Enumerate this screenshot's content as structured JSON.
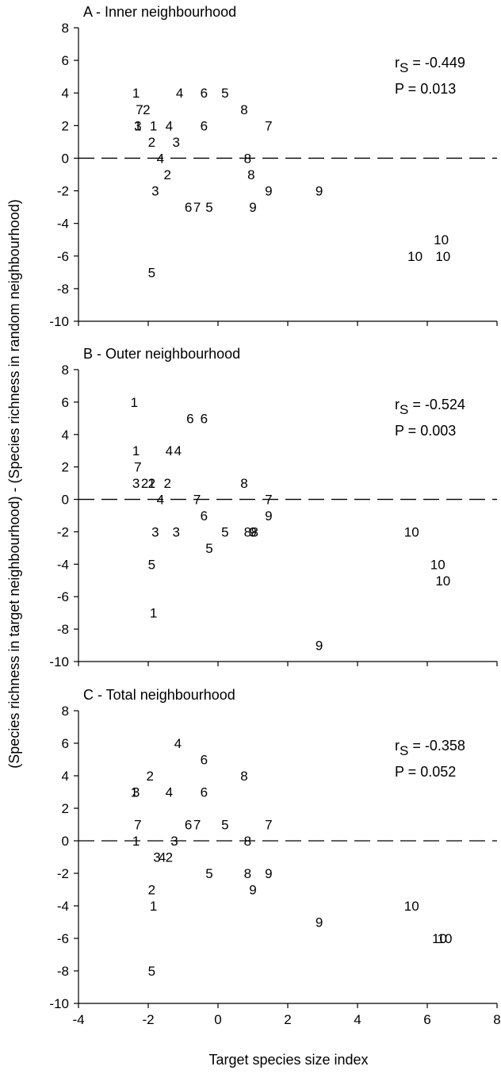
{
  "xlabel": "Target species size index",
  "ylabel": "(Species richness in target neighbourhood) - (Species richness in random neighbourhood)",
  "chart_data": [
    {
      "type": "scatter",
      "title": "A - Inner neighbourhood",
      "xlim": [
        -4,
        8
      ],
      "ylim": [
        -10,
        8
      ],
      "xticks": [
        "-4",
        "-2",
        "0",
        "2",
        "4",
        "6",
        "8"
      ],
      "yticks": [
        "-10",
        "-8",
        "-6",
        "-4",
        "-2",
        "0",
        "2",
        "4",
        "6",
        "8"
      ],
      "reference_line": {
        "y": 0,
        "style": "dashed"
      },
      "stat_r": "-0.449",
      "stat_p": "P = 0.013",
      "points": [
        {
          "x": -2.35,
          "y": 4,
          "label": "1"
        },
        {
          "x": -1.1,
          "y": 4,
          "label": "4"
        },
        {
          "x": -0.4,
          "y": 4,
          "label": "6"
        },
        {
          "x": 0.2,
          "y": 4,
          "label": "5"
        },
        {
          "x": -2.25,
          "y": 3,
          "label": "7"
        },
        {
          "x": -2.05,
          "y": 3,
          "label": "2"
        },
        {
          "x": 0.75,
          "y": 3,
          "label": "8"
        },
        {
          "x": -2.3,
          "y": 2,
          "label": "1"
        },
        {
          "x": -2.3,
          "y": 2,
          "label": "3"
        },
        {
          "x": -1.85,
          "y": 2,
          "label": "1"
        },
        {
          "x": -1.4,
          "y": 2,
          "label": "4"
        },
        {
          "x": -0.4,
          "y": 2,
          "label": "6"
        },
        {
          "x": 1.45,
          "y": 2,
          "label": "7"
        },
        {
          "x": -1.9,
          "y": 1,
          "label": "2"
        },
        {
          "x": -1.2,
          "y": 1,
          "label": "3"
        },
        {
          "x": -1.65,
          "y": 0,
          "label": "4"
        },
        {
          "x": 0.85,
          "y": 0,
          "label": "8"
        },
        {
          "x": -1.45,
          "y": -1,
          "label": "2"
        },
        {
          "x": 0.95,
          "y": -1,
          "label": "8"
        },
        {
          "x": -1.8,
          "y": -2,
          "label": "3"
        },
        {
          "x": 1.45,
          "y": -2,
          "label": "9"
        },
        {
          "x": 2.9,
          "y": -2,
          "label": "9"
        },
        {
          "x": -0.85,
          "y": -3,
          "label": "6"
        },
        {
          "x": -0.6,
          "y": -3,
          "label": "7"
        },
        {
          "x": -0.25,
          "y": -3,
          "label": "5"
        },
        {
          "x": 1.0,
          "y": -3,
          "label": "9"
        },
        {
          "x": 6.4,
          "y": -5,
          "label": "10"
        },
        {
          "x": 5.65,
          "y": -6,
          "label": "10"
        },
        {
          "x": 6.45,
          "y": -6,
          "label": "10"
        },
        {
          "x": -1.9,
          "y": -7,
          "label": "5"
        }
      ]
    },
    {
      "type": "scatter",
      "title": "B - Outer neighbourhood",
      "xlim": [
        -4,
        8
      ],
      "ylim": [
        -10,
        8
      ],
      "xticks": [
        "-4",
        "-2",
        "0",
        "2",
        "4",
        "6",
        "8"
      ],
      "yticks": [
        "-10",
        "-8",
        "-6",
        "-4",
        "-2",
        "0",
        "2",
        "4",
        "6",
        "8"
      ],
      "reference_line": {
        "y": 0,
        "style": "dashed"
      },
      "stat_r": "-0.524",
      "stat_p": "P = 0.003",
      "points": [
        {
          "x": -2.4,
          "y": 6,
          "label": "1"
        },
        {
          "x": -0.8,
          "y": 5,
          "label": "6"
        },
        {
          "x": -0.4,
          "y": 5,
          "label": "6"
        },
        {
          "x": -2.35,
          "y": 3,
          "label": "1"
        },
        {
          "x": -1.4,
          "y": 3,
          "label": "4"
        },
        {
          "x": -1.15,
          "y": 3,
          "label": "4"
        },
        {
          "x": -2.3,
          "y": 2,
          "label": "7"
        },
        {
          "x": -2.35,
          "y": 1,
          "label": "3"
        },
        {
          "x": -2.1,
          "y": 1,
          "label": "2"
        },
        {
          "x": -1.9,
          "y": 1,
          "label": "1"
        },
        {
          "x": -1.9,
          "y": 1,
          "label": "2"
        },
        {
          "x": -1.45,
          "y": 1,
          "label": "2"
        },
        {
          "x": 0.75,
          "y": 1,
          "label": "8"
        },
        {
          "x": -1.65,
          "y": 0,
          "label": "4"
        },
        {
          "x": -0.6,
          "y": 0,
          "label": "7"
        },
        {
          "x": 1.45,
          "y": 0,
          "label": "7"
        },
        {
          "x": -0.4,
          "y": -1,
          "label": "6"
        },
        {
          "x": 1.45,
          "y": -1,
          "label": "9"
        },
        {
          "x": -1.8,
          "y": -2,
          "label": "3"
        },
        {
          "x": -1.2,
          "y": -2,
          "label": "3"
        },
        {
          "x": 0.2,
          "y": -2,
          "label": "5"
        },
        {
          "x": 0.85,
          "y": -2,
          "label": "8"
        },
        {
          "x": 1.0,
          "y": -2,
          "label": "9"
        },
        {
          "x": 1.05,
          "y": -2,
          "label": "8"
        },
        {
          "x": 5.55,
          "y": -2,
          "label": "10"
        },
        {
          "x": -0.25,
          "y": -3,
          "label": "5"
        },
        {
          "x": -1.9,
          "y": -4,
          "label": "5"
        },
        {
          "x": 6.3,
          "y": -4,
          "label": "10"
        },
        {
          "x": 6.45,
          "y": -5,
          "label": "10"
        },
        {
          "x": -1.85,
          "y": -7,
          "label": "1"
        },
        {
          "x": 2.9,
          "y": -9,
          "label": "9"
        }
      ]
    },
    {
      "type": "scatter",
      "title": "C - Total neighbourhood",
      "xlim": [
        -4,
        8
      ],
      "ylim": [
        -10,
        8
      ],
      "xticks": [
        "-4",
        "-2",
        "0",
        "2",
        "4",
        "6",
        "8"
      ],
      "yticks": [
        "-10",
        "-8",
        "-6",
        "-4",
        "-2",
        "0",
        "2",
        "4",
        "6",
        "8"
      ],
      "reference_line": {
        "y": 0,
        "style": "dashed"
      },
      "stat_r": "-0.358",
      "stat_p": "P = 0.052",
      "points": [
        {
          "x": -1.15,
          "y": 6,
          "label": "4"
        },
        {
          "x": -0.4,
          "y": 5,
          "label": "6"
        },
        {
          "x": -1.95,
          "y": 4,
          "label": "2"
        },
        {
          "x": 0.75,
          "y": 4,
          "label": "8"
        },
        {
          "x": -2.4,
          "y": 3,
          "label": "1"
        },
        {
          "x": -2.35,
          "y": 3,
          "label": "3"
        },
        {
          "x": -1.4,
          "y": 3,
          "label": "4"
        },
        {
          "x": -0.4,
          "y": 3,
          "label": "6"
        },
        {
          "x": -2.3,
          "y": 1,
          "label": "7"
        },
        {
          "x": -0.85,
          "y": 1,
          "label": "6"
        },
        {
          "x": -0.6,
          "y": 1,
          "label": "7"
        },
        {
          "x": 0.2,
          "y": 1,
          "label": "5"
        },
        {
          "x": 1.45,
          "y": 1,
          "label": "7"
        },
        {
          "x": -2.35,
          "y": 0,
          "label": "1"
        },
        {
          "x": -1.25,
          "y": 0,
          "label": "3"
        },
        {
          "x": 0.85,
          "y": 0,
          "label": "8"
        },
        {
          "x": -1.75,
          "y": -1,
          "label": "3"
        },
        {
          "x": -1.6,
          "y": -1,
          "label": "4"
        },
        {
          "x": -1.4,
          "y": -1,
          "label": "2"
        },
        {
          "x": -0.25,
          "y": -2,
          "label": "5"
        },
        {
          "x": 0.85,
          "y": -2,
          "label": "8"
        },
        {
          "x": 1.45,
          "y": -2,
          "label": "9"
        },
        {
          "x": -1.9,
          "y": -3,
          "label": "2"
        },
        {
          "x": 1.0,
          "y": -3,
          "label": "9"
        },
        {
          "x": -1.85,
          "y": -4,
          "label": "1"
        },
        {
          "x": 5.55,
          "y": -4,
          "label": "10"
        },
        {
          "x": 2.9,
          "y": -5,
          "label": "9"
        },
        {
          "x": 6.35,
          "y": -6,
          "label": "10"
        },
        {
          "x": 6.5,
          "y": -6,
          "label": "10"
        },
        {
          "x": -1.9,
          "y": -8,
          "label": "5"
        }
      ]
    }
  ]
}
